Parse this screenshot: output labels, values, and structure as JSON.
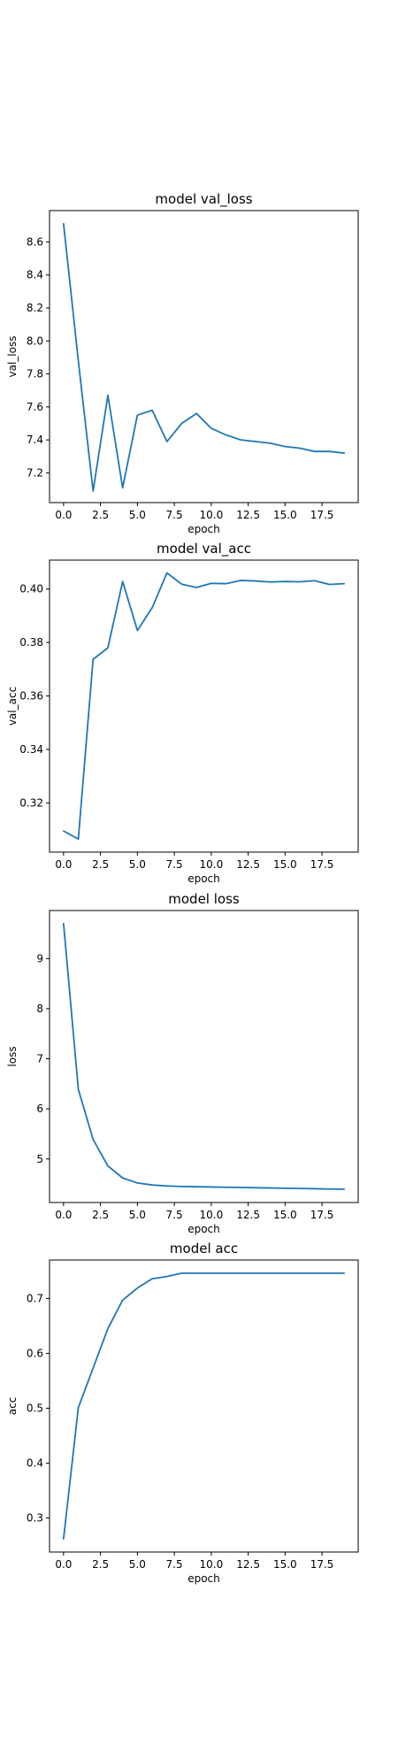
{
  "colors": {
    "line": "#1f77b4",
    "axes": "#000000",
    "background": "#ffffff"
  },
  "chart_data": [
    {
      "type": "line",
      "title": "model val_loss",
      "xlabel": "epoch",
      "ylabel": "val_loss",
      "x": [
        0,
        1,
        2,
        3,
        4,
        5,
        6,
        7,
        8,
        9,
        10,
        11,
        12,
        13,
        14,
        15,
        16,
        17,
        18,
        19
      ],
      "series": [
        {
          "values": [
            8.71,
            7.88,
            7.09,
            7.67,
            7.11,
            7.55,
            7.58,
            7.39,
            7.5,
            7.56,
            7.47,
            7.43,
            7.4,
            7.39,
            7.38,
            7.36,
            7.35,
            7.33,
            7.33,
            7.32
          ]
        }
      ],
      "xticks": [
        0.0,
        2.5,
        5.0,
        7.5,
        10.0,
        12.5,
        15.0,
        17.5
      ],
      "xtick_labels": [
        "0.0",
        "2.5",
        "5.0",
        "7.5",
        "10.0",
        "12.5",
        "15.0",
        "17.5"
      ],
      "yticks": [
        7.2,
        7.4,
        7.6,
        7.8,
        8.0,
        8.2,
        8.4,
        8.6
      ],
      "ytick_labels": [
        "7.2",
        "7.4",
        "7.6",
        "7.8",
        "8.0",
        "8.2",
        "8.4",
        "8.6"
      ],
      "xlim": [
        -0.95,
        19.95
      ],
      "ylim": [
        7.02,
        8.79
      ],
      "grid": false
    },
    {
      "type": "line",
      "title": "model val_acc",
      "xlabel": "epoch",
      "ylabel": "val_acc",
      "x": [
        0,
        1,
        2,
        3,
        4,
        5,
        6,
        7,
        8,
        9,
        10,
        11,
        12,
        13,
        14,
        15,
        16,
        17,
        18,
        19
      ],
      "series": [
        {
          "values": [
            0.3095,
            0.3065,
            0.3737,
            0.378,
            0.4028,
            0.3845,
            0.393,
            0.406,
            0.4018,
            0.4006,
            0.4021,
            0.402,
            0.4032,
            0.403,
            0.4026,
            0.4028,
            0.4027,
            0.4031,
            0.4017,
            0.402
          ]
        }
      ],
      "xticks": [
        0.0,
        2.5,
        5.0,
        7.5,
        10.0,
        12.5,
        15.0,
        17.5
      ],
      "xtick_labels": [
        "0.0",
        "2.5",
        "5.0",
        "7.5",
        "10.0",
        "12.5",
        "15.0",
        "17.5"
      ],
      "yticks": [
        0.32,
        0.34,
        0.36,
        0.38,
        0.4
      ],
      "ytick_labels": [
        "0.32",
        "0.34",
        "0.36",
        "0.38",
        "0.40"
      ],
      "xlim": [
        -0.95,
        19.95
      ],
      "ylim": [
        0.3016,
        0.4108
      ],
      "grid": false
    },
    {
      "type": "line",
      "title": "model loss",
      "xlabel": "epoch",
      "ylabel": "loss",
      "x": [
        0,
        1,
        2,
        3,
        4,
        5,
        6,
        7,
        8,
        9,
        10,
        11,
        12,
        13,
        14,
        15,
        16,
        17,
        18,
        19
      ],
      "series": [
        {
          "values": [
            9.7,
            6.39,
            5.39,
            4.86,
            4.62,
            4.52,
            4.48,
            4.46,
            4.45,
            4.445,
            4.44,
            4.435,
            4.43,
            4.425,
            4.42,
            4.415,
            4.41,
            4.405,
            4.4,
            4.395
          ]
        }
      ],
      "xticks": [
        0.0,
        2.5,
        5.0,
        7.5,
        10.0,
        12.5,
        15.0,
        17.5
      ],
      "xtick_labels": [
        "0.0",
        "2.5",
        "5.0",
        "7.5",
        "10.0",
        "12.5",
        "15.0",
        "17.5"
      ],
      "yticks": [
        5,
        6,
        7,
        8,
        9
      ],
      "ytick_labels": [
        "5",
        "6",
        "7",
        "8",
        "9"
      ],
      "xlim": [
        -0.95,
        19.95
      ],
      "ylim": [
        4.13,
        9.96
      ],
      "grid": false
    },
    {
      "type": "line",
      "title": "model acc",
      "xlabel": "epoch",
      "ylabel": "acc",
      "x": [
        0,
        1,
        2,
        3,
        4,
        5,
        6,
        7,
        8,
        9,
        10,
        11,
        12,
        13,
        14,
        15,
        16,
        17,
        18,
        19
      ],
      "series": [
        {
          "values": [
            0.262,
            0.501,
            0.573,
            0.645,
            0.697,
            0.719,
            0.736,
            0.74,
            0.746,
            0.746,
            0.746,
            0.746,
            0.746,
            0.746,
            0.746,
            0.746,
            0.746,
            0.746,
            0.746,
            0.746
          ]
        }
      ],
      "xticks": [
        0.0,
        2.5,
        5.0,
        7.5,
        10.0,
        12.5,
        15.0,
        17.5
      ],
      "xtick_labels": [
        "0.0",
        "2.5",
        "5.0",
        "7.5",
        "10.0",
        "12.5",
        "15.0",
        "17.5"
      ],
      "yticks": [
        0.3,
        0.4,
        0.5,
        0.6,
        0.7
      ],
      "ytick_labels": [
        "0.3",
        "0.4",
        "0.5",
        "0.6",
        "0.7"
      ],
      "xlim": [
        -0.95,
        19.95
      ],
      "ylim": [
        0.238,
        0.77
      ],
      "grid": false
    }
  ]
}
